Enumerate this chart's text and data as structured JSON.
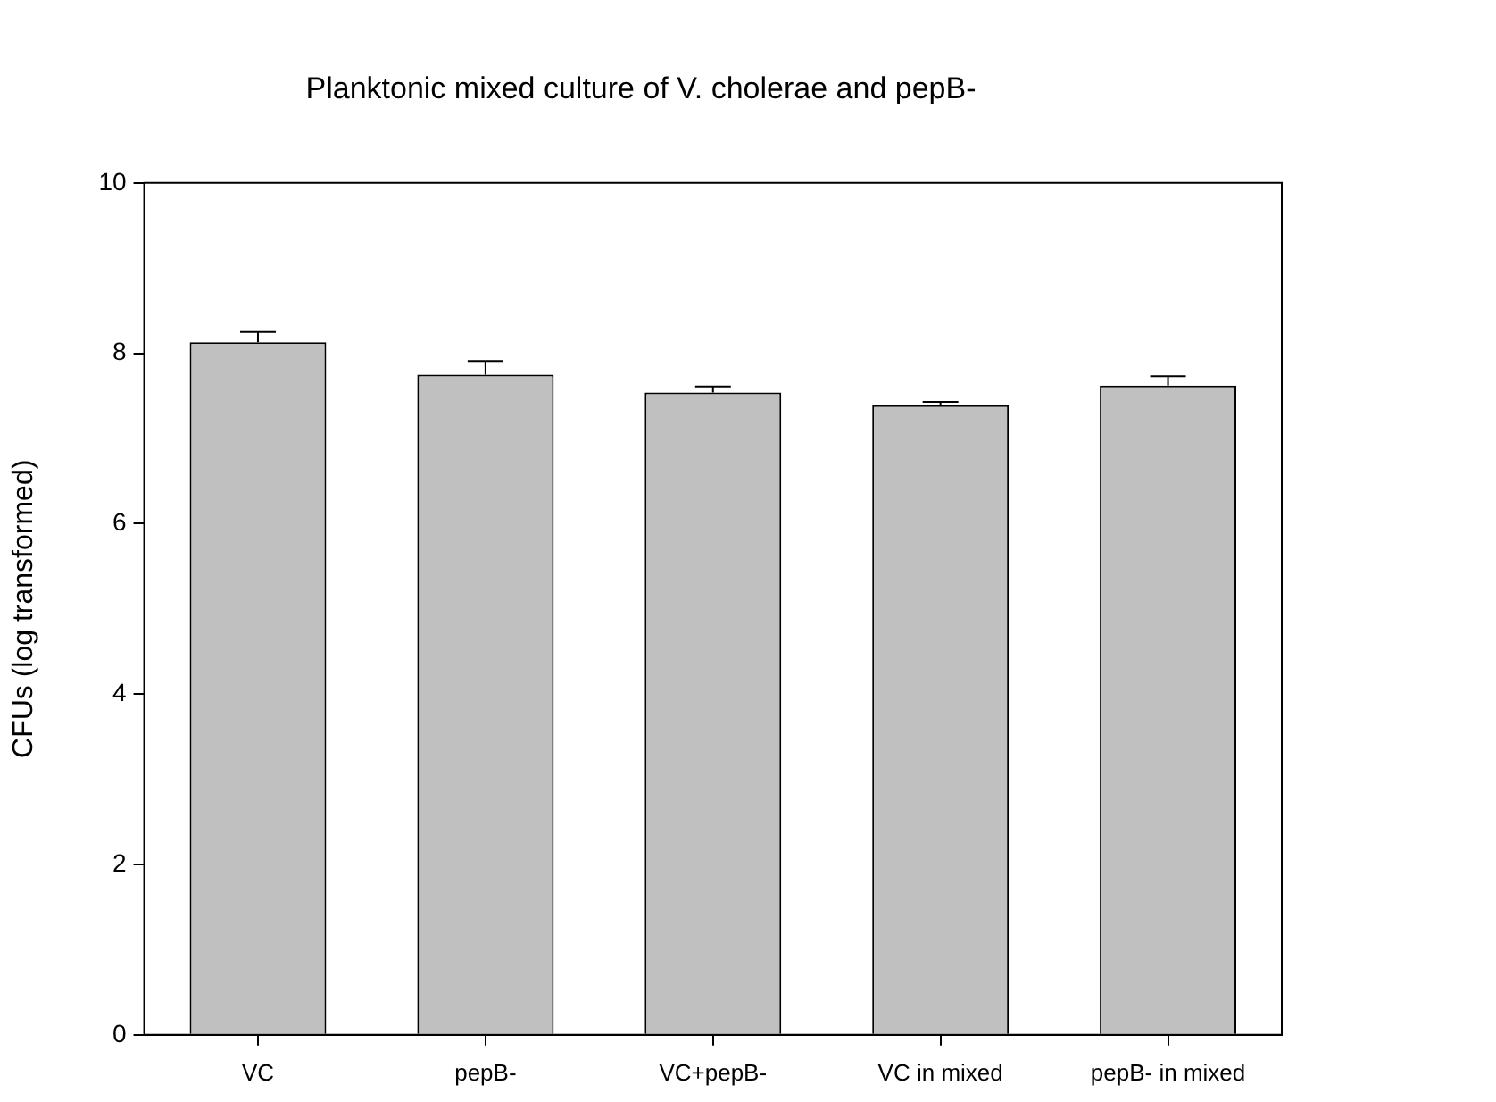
{
  "chart_data": {
    "type": "bar",
    "title": "Planktonic mixed culture of V. cholerae and pepB-",
    "ylabel": "CFUs (log transformed)",
    "categories": [
      "VC",
      "pepB-",
      "VC+pepB-",
      "VC in mixed",
      "pepB- in mixed"
    ],
    "values": [
      8.13,
      7.75,
      7.54,
      7.39,
      7.62
    ],
    "errors": [
      [
        8.13,
        8.25
      ],
      [
        7.75,
        7.91
      ],
      [
        7.54,
        7.61
      ],
      [
        7.39,
        7.43
      ],
      [
        7.62,
        7.73
      ]
    ],
    "color": "#c0c0c0",
    "ylim": [
      0,
      10
    ],
    "yticks": [
      0,
      2,
      4,
      6,
      8,
      10
    ],
    "grid": false,
    "legend": false
  }
}
